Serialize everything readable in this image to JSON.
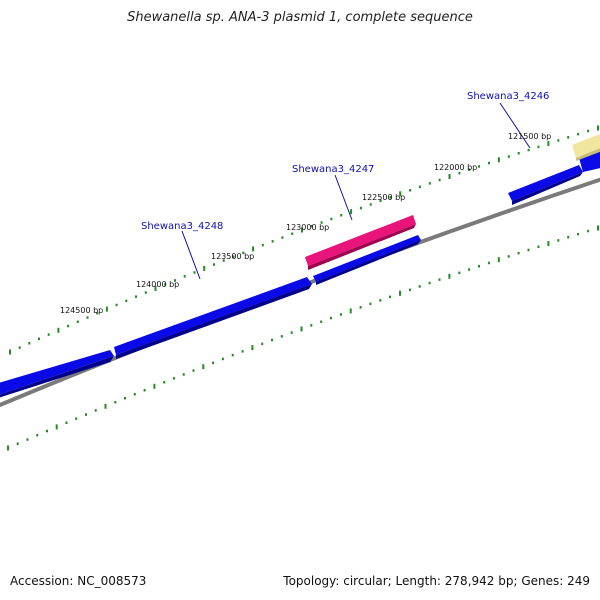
{
  "title": "Shewanella sp. ANA-3 plasmid 1, complete sequence",
  "footer": {
    "accession": "Accession: NC_008573",
    "summary": "Topology: circular; Length: 278,942 bp; Genes: 249"
  },
  "colors": {
    "forward_gene": "#0a0ae6",
    "highlight_gene": "#e8147a",
    "other_gene": "#f0e6a0",
    "backbone": "#808080",
    "tick": "#228b22",
    "label": "#1010b0"
  },
  "scale_labels": [
    "121500 bp",
    "122000 bp",
    "122500 bp",
    "123000 bp",
    "123500 bp",
    "124000 bp",
    "124500 bp"
  ],
  "gene_labels": [
    "Shewana3_4246",
    "Shewana3_4247",
    "Shewana3_4248"
  ]
}
